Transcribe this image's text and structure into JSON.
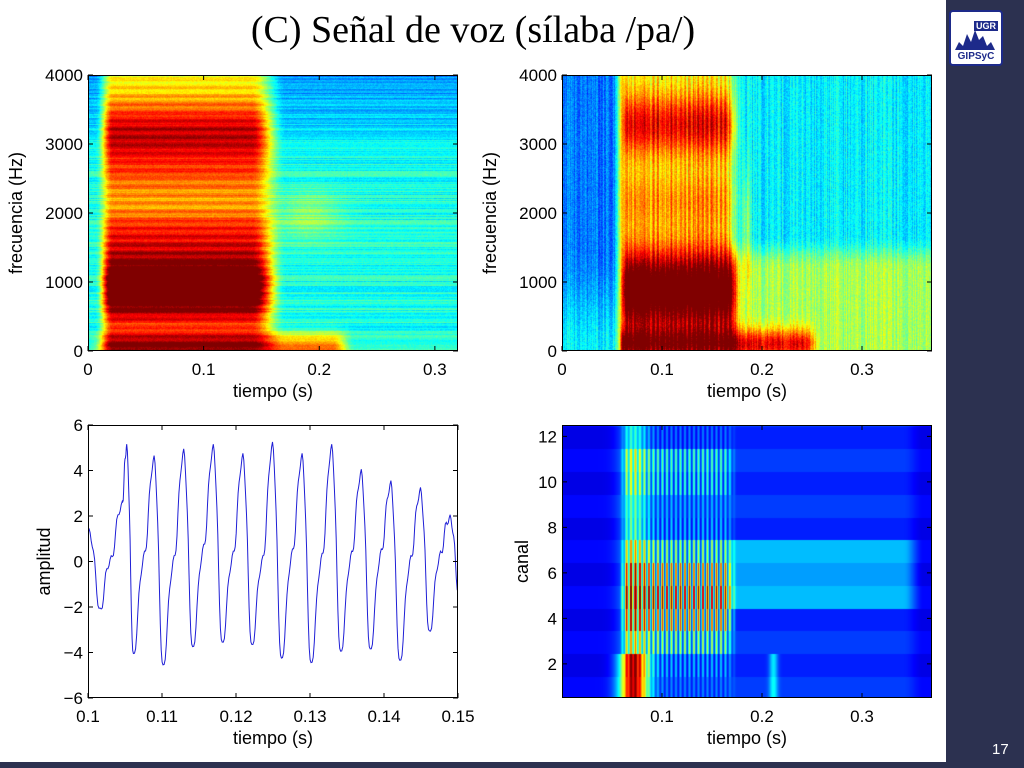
{
  "slide": {
    "title": "(C) Señal de voz (sílaba /pa/)",
    "page_number": "17",
    "logo": {
      "top_text": "UGR",
      "bottom_text": "GIPSyC"
    },
    "colors": {
      "sidebar": "#2c3150",
      "waveform": "#1f1fd6"
    }
  },
  "chart_data": [
    {
      "id": "spectrogram-wideband",
      "type": "heatmap",
      "title": "",
      "xlabel": "tiempo (s)",
      "ylabel": "frecuencia (Hz)",
      "xlim": [
        0,
        0.32
      ],
      "ylim": [
        0,
        4000
      ],
      "xticks": [
        0,
        0.1,
        0.2,
        0.3
      ],
      "xtick_labels": [
        "0",
        "0.1",
        "0.2",
        "0.3"
      ],
      "yticks": [
        0,
        1000,
        2000,
        3000,
        4000
      ],
      "ytick_labels": [
        "0",
        "1000",
        "2000",
        "3000",
        "4000"
      ],
      "colormap": "jet"
    },
    {
      "id": "spectrogram-narrowband",
      "type": "heatmap",
      "title": "",
      "xlabel": "tiempo (s)",
      "ylabel": "frecuencia (Hz)",
      "xlim": [
        0,
        0.37
      ],
      "ylim": [
        0,
        4000
      ],
      "xticks": [
        0,
        0.1,
        0.2,
        0.3
      ],
      "xtick_labels": [
        "0",
        "0.1",
        "0.2",
        "0.3"
      ],
      "yticks": [
        0,
        1000,
        2000,
        3000,
        4000
      ],
      "ytick_labels": [
        "0",
        "1000",
        "2000",
        "3000",
        "4000"
      ],
      "colormap": "jet"
    },
    {
      "id": "waveform",
      "type": "line",
      "title": "",
      "xlabel": "tiempo (s)",
      "ylabel": "amplitud",
      "xlim": [
        0.1,
        0.15
      ],
      "ylim": [
        -6,
        6
      ],
      "xticks": [
        0.1,
        0.11,
        0.12,
        0.13,
        0.14,
        0.15
      ],
      "xtick_labels": [
        "0.1",
        "0.11",
        "0.12",
        "0.13",
        "0.14",
        "0.15"
      ],
      "yticks": [
        -6,
        -4,
        -2,
        0,
        2,
        4,
        6
      ],
      "ytick_labels": [
        "−6",
        "−4",
        "−2",
        "0",
        "2",
        "4",
        "6"
      ],
      "series": [
        {
          "name": "",
          "x": [
            0.1,
            0.1015,
            0.103,
            0.1045,
            0.1051,
            0.106,
            0.1075,
            0.1088,
            0.11,
            0.1115,
            0.1128,
            0.114,
            0.1155,
            0.1168,
            0.118,
            0.1195,
            0.1208,
            0.122,
            0.1235,
            0.1248,
            0.126,
            0.1275,
            0.1288,
            0.13,
            0.1315,
            0.1328,
            0.134,
            0.1355,
            0.1368,
            0.138,
            0.1395,
            0.1408,
            0.142,
            0.1435,
            0.1448,
            0.146,
            0.1475,
            0.1488,
            0.15
          ],
          "values": [
            1.5,
            -2.0,
            0.3,
            2.7,
            5.2,
            -4.0,
            0.5,
            4.7,
            -4.5,
            0.3,
            5.0,
            -3.7,
            0.8,
            5.2,
            -3.5,
            0.5,
            4.8,
            -3.6,
            0.3,
            5.3,
            -4.2,
            0.6,
            4.8,
            -4.4,
            0.4,
            5.2,
            -3.9,
            0.5,
            4.1,
            -3.8,
            0.6,
            3.6,
            -4.3,
            0.3,
            3.3,
            -3.0,
            0.5,
            2.1,
            -1.3
          ]
        }
      ]
    },
    {
      "id": "cochleagram",
      "type": "heatmap",
      "title": "",
      "xlabel": "tiempo (s)",
      "ylabel": "canal",
      "xlim": [
        0,
        0.37
      ],
      "ylim": [
        0.5,
        12.5
      ],
      "xticks": [
        0.1,
        0.2,
        0.3
      ],
      "xtick_labels": [
        "0.1",
        "0.2",
        "0.3"
      ],
      "yticks": [
        2,
        4,
        6,
        8,
        10,
        12
      ],
      "ytick_labels": [
        "2",
        "4",
        "6",
        "8",
        "10",
        "12"
      ],
      "colormap": "jet"
    }
  ]
}
